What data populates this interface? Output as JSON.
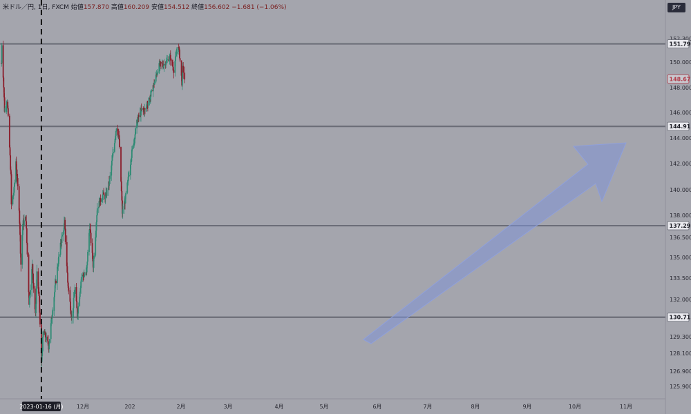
{
  "header": {
    "symbol": "米ドル／円, 1日, FXCM",
    "open_label": "始値",
    "open": "157.870",
    "high_label": "高値",
    "high": "160.209",
    "low_label": "安値",
    "low": "154.512",
    "close_label": "終値",
    "close": "156.602",
    "change": "−1.681 (−1.06%)"
  },
  "currency_badge": "JPY",
  "crosshair_date_label": "2023-01-16 (月)",
  "price_badges": [
    {
      "price": 151.79,
      "label": "151.790",
      "style": "level"
    },
    {
      "price": 148.675,
      "label": "148.675",
      "style": "current"
    },
    {
      "price": 144.912,
      "label": "144.912",
      "style": "level"
    },
    {
      "price": 137.293,
      "label": "137.293",
      "style": "level"
    },
    {
      "price": 130.713,
      "label": "130.713",
      "style": "level"
    }
  ],
  "colors": {
    "background": "#a4a5ad",
    "up_candle": "#2e8b74",
    "down_candle": "#8b1e2b",
    "level_line": "#6c6e78",
    "arrow_fill": "#7f93d6",
    "current_price": "#b23a48"
  },
  "chart_data": {
    "type": "candlestick",
    "title": "米ドル／円, 1日, FXCM",
    "y_axis_ticks": [
      152.3,
      150.0,
      148.0,
      146.0,
      144.0,
      142.0,
      140.0,
      138.0,
      136.5,
      135.0,
      133.5,
      132.0,
      129.3,
      128.1,
      126.9,
      125.9
    ],
    "y_axis_tick_labels": [
      "152.300",
      "150.000",
      "148.000",
      "146.000",
      "144.000",
      "142.000",
      "140.000",
      "138.000",
      "136.500",
      "135.000",
      "133.500",
      "132.000",
      "129.300",
      "128.100",
      "126.900",
      "125.900"
    ],
    "x_axis_labels": [
      "11月",
      "12月",
      "202",
      "2月",
      "3月",
      "4月",
      "5月",
      "6月",
      "7月",
      "8月",
      "9月",
      "10月",
      "11月"
    ],
    "horizontal_levels": [
      151.79,
      144.912,
      137.293,
      130.713
    ],
    "current_price": 148.675,
    "crosshair_date": "2023-01-16",
    "price_path": [
      [
        "2022-10-20",
        149.9
      ],
      [
        "2022-10-21",
        151.79
      ],
      [
        "2022-10-27",
        146.2
      ],
      [
        "2022-11-02",
        147.0
      ],
      [
        "2022-11-10",
        141.0
      ],
      [
        "2022-11-11",
        138.8
      ],
      [
        "2022-11-17",
        140.0
      ],
      [
        "2022-11-21",
        142.2
      ],
      [
        "2022-11-28",
        138.6
      ],
      [
        "2022-12-02",
        134.5
      ],
      [
        "2022-12-06",
        137.4
      ],
      [
        "2022-12-13",
        137.8
      ],
      [
        "2022-12-20",
        131.8
      ],
      [
        "2022-12-27",
        134.4
      ],
      [
        "2023-01-03",
        130.8
      ],
      [
        "2023-01-06",
        134.0
      ],
      [
        "2023-01-11",
        132.0
      ],
      [
        "2023-01-16",
        127.4
      ],
      [
        "2023-01-20",
        129.6
      ],
      [
        "2023-01-25",
        129.3
      ],
      [
        "2023-02-01",
        128.6
      ],
      [
        "2023-02-10",
        131.4
      ],
      [
        "2023-02-20",
        134.2
      ],
      [
        "2023-02-28",
        136.1
      ],
      [
        "2023-03-08",
        137.5
      ],
      [
        "2023-03-15",
        133.2
      ],
      [
        "2023-03-24",
        130.6
      ],
      [
        "2023-03-31",
        132.8
      ],
      [
        "2023-04-05",
        130.9
      ],
      [
        "2023-04-14",
        133.6
      ],
      [
        "2023-04-25",
        133.8
      ],
      [
        "2023-05-02",
        137.3
      ],
      [
        "2023-05-10",
        134.4
      ],
      [
        "2023-05-19",
        138.6
      ],
      [
        "2023-05-31",
        139.6
      ],
      [
        "2023-06-06",
        139.4
      ],
      [
        "2023-06-15",
        140.7
      ],
      [
        "2023-06-30",
        144.9
      ],
      [
        "2023-07-06",
        143.9
      ],
      [
        "2023-07-13",
        138.2
      ],
      [
        "2023-07-18",
        138.9
      ],
      [
        "2023-07-28",
        141.3
      ],
      [
        "2023-08-03",
        142.9
      ],
      [
        "2023-08-15",
        145.4
      ],
      [
        "2023-08-25",
        146.2
      ],
      [
        "2023-09-01",
        146.2
      ],
      [
        "2023-09-13",
        147.3
      ],
      [
        "2023-09-29",
        149.4
      ],
      [
        "2023-10-03",
        149.8
      ],
      [
        "2023-10-12",
        149.8
      ],
      [
        "2023-10-26",
        150.5
      ],
      [
        "2023-11-03",
        149.4
      ],
      [
        "2023-11-08",
        150.6
      ],
      [
        "2023-11-13",
        151.7
      ],
      [
        "2023-11-16",
        150.6
      ],
      [
        "2023-11-21",
        148.4
      ],
      [
        "2023-11-23",
        149.5
      ],
      [
        "2023-11-27",
        148.675
      ]
    ]
  }
}
